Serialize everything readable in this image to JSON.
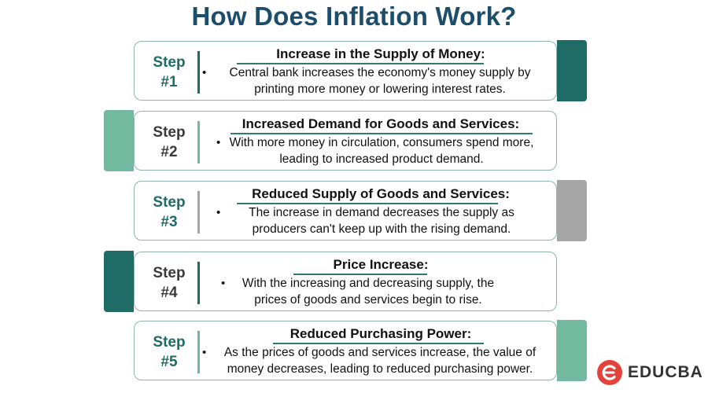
{
  "title": "How Does Inflation Work?",
  "steps": [
    {
      "label_line1": "Step",
      "label_line2": "#1",
      "heading": "Increase in the Supply of Money:",
      "bullet": "•",
      "description": "Central bank increases the economy's money supply by printing more money or lowering interest rates.",
      "tab_side": "right",
      "tab_color": "#1f6b65",
      "label_color": "#1f6b65",
      "divider_color": "#1f6b65"
    },
    {
      "label_line1": "Step",
      "label_line2": "#2",
      "heading": "Increased Demand for Goods and Services:",
      "bullet": "•",
      "description": "With more money in circulation, consumers spend more, leading to increased product demand.",
      "tab_side": "left",
      "tab_color": "#72b99f",
      "label_color": "#3a3a3a",
      "divider_color": "#72b99f"
    },
    {
      "label_line1": "Step",
      "label_line2": "#3",
      "heading": "Reduced Supply of Goods and Services:",
      "bullet": "•",
      "description": "The increase in demand decreases the supply as producers can't keep up with the rising demand.",
      "tab_side": "right",
      "tab_color": "#a6a6a6",
      "label_color": "#1f6b65",
      "divider_color": "#a6a6a6"
    },
    {
      "label_line1": "Step",
      "label_line2": "#4",
      "heading": "Price Increase:",
      "bullet": "•",
      "description": "With the increasing and decreasing supply, the prices of goods and services begin to rise.",
      "tab_side": "left",
      "tab_color": "#1f6b65",
      "label_color": "#3a3a3a",
      "divider_color": "#1f6b65"
    },
    {
      "label_line1": "Step",
      "label_line2": "#5",
      "heading": "Reduced Purchasing Power:",
      "bullet": "•",
      "description": "As the prices of goods and services increase, the value of money decreases, leading to reduced purchasing power.",
      "tab_side": "right",
      "tab_color": "#72b99f",
      "label_color": "#1f6b65",
      "divider_color": "#72b99f"
    }
  ],
  "logo": {
    "text": "EDUCBA",
    "icon": "educba-logo-icon",
    "color": "#e3433b"
  },
  "colors": {
    "title": "#1c4e6b",
    "card_border": "#8fb6ab",
    "underline": "#2e7d6e"
  }
}
